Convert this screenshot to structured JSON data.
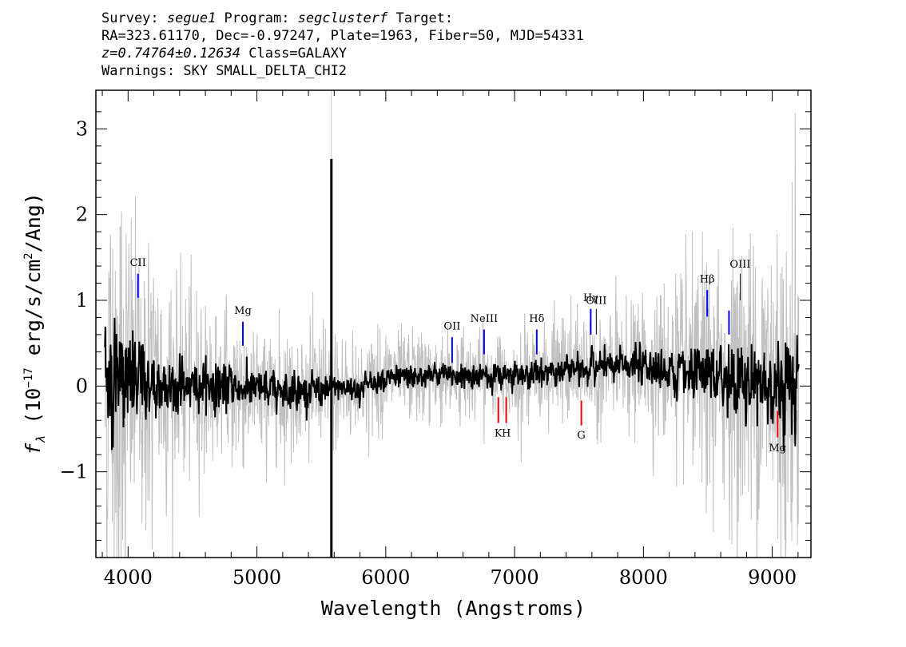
{
  "header": {
    "line1": {
      "l1": "Survey: ",
      "survey": "segue1",
      "l2": " Program: ",
      "program": "segclusterf",
      "l3": " Target:"
    },
    "line2": "RA=323.61170, Dec=-0.97247, Plate=1963, Fiber=50, MJD=54331",
    "line3": {
      "z": "z=0.74764±0.12634",
      "cls": " Class=GALAXY"
    },
    "line4": "Warnings: SKY SMALL_DELTA_CHI2"
  },
  "chart_data": {
    "type": "line",
    "xlabel": "Wavelength (Angstroms)",
    "ylabel": {
      "prefix": "f",
      "sub": "λ",
      "text1": " (10",
      "sup": "−17",
      "text2": " erg/s/cm",
      "sup2": "2",
      "text3": "/Ang)"
    },
    "xlim": [
      3750,
      9300
    ],
    "ylim": [
      -2.0,
      3.45
    ],
    "xticks": [
      4000,
      5000,
      6000,
      7000,
      8000,
      9000
    ],
    "xtick_labels": [
      "4000",
      "5000",
      "6000",
      "7000",
      "8000",
      "9000"
    ],
    "yticks": [
      -1,
      0,
      1,
      2,
      3
    ],
    "ytick_labels": [
      "−1",
      "0",
      "1",
      "2",
      "3"
    ],
    "series": [
      {
        "role": "error envelope",
        "color": "#c0c0c0"
      },
      {
        "role": "smoothed flux",
        "color": "#000000"
      }
    ],
    "spike": {
      "x": 5578,
      "y_top": 2.65,
      "y_bottom": -2.0
    },
    "flux_profile": [
      [
        3820,
        0.1
      ],
      [
        4000,
        0.05
      ],
      [
        4300,
        0.0
      ],
      [
        4600,
        0.02
      ],
      [
        5000,
        -0.05
      ],
      [
        5400,
        -0.05
      ],
      [
        5800,
        -0.02
      ],
      [
        6000,
        0.1
      ],
      [
        6500,
        0.12
      ],
      [
        7000,
        0.12
      ],
      [
        7500,
        0.2
      ],
      [
        8000,
        0.25
      ],
      [
        8500,
        0.1
      ],
      [
        8900,
        0.05
      ],
      [
        9200,
        0.0
      ]
    ],
    "noise_profile": [
      [
        3820,
        0.75
      ],
      [
        4100,
        0.5
      ],
      [
        4400,
        0.3
      ],
      [
        5000,
        0.22
      ],
      [
        5600,
        0.18
      ],
      [
        6000,
        0.14
      ],
      [
        7000,
        0.14
      ],
      [
        8000,
        0.2
      ],
      [
        8400,
        0.32
      ],
      [
        8800,
        0.45
      ],
      [
        9200,
        0.6
      ]
    ],
    "emission_lines": [
      {
        "name": "CII",
        "x": 4077,
        "y1": 1.03,
        "y2": 1.31,
        "color": "#0000ff",
        "label_y": 1.4
      },
      {
        "name": "Mg",
        "x": 4891,
        "y1": 0.47,
        "y2": 0.75,
        "color": "#0000ff",
        "label_y": 0.84
      },
      {
        "name": "OII",
        "x": 6515,
        "y1": 0.27,
        "y2": 0.57,
        "color": "#0000ff",
        "label_y": 0.66
      },
      {
        "name": "NeIII",
        "x": 6763,
        "y1": 0.37,
        "y2": 0.66,
        "color": "#0000ff",
        "label_y": 0.75
      },
      {
        "name": "Hδ",
        "x": 7172,
        "y1": 0.37,
        "y2": 0.66,
        "color": "#0000ff",
        "label_y": 0.75
      },
      {
        "name": "Hγ",
        "x": 7591,
        "y1": 0.6,
        "y2": 0.9,
        "color": "#0000ff",
        "label_y": 0.99
      },
      {
        "name": "OIII",
        "x": 7634,
        "y1": 0.6,
        "y2": 0.9,
        "color": "#000000",
        "label_y": 0.96
      },
      {
        "name": "Hβ",
        "x": 8495,
        "y1": 0.81,
        "y2": 1.12,
        "color": "#0000ff",
        "label_y": 1.21
      },
      {
        "name": "",
        "x": 8664,
        "y1": 0.6,
        "y2": 0.88,
        "color": "#0000ff"
      },
      {
        "name": "OIII",
        "x": 8751,
        "y1": 1.0,
        "y2": 1.31,
        "color": "#000000",
        "label_y": 1.38
      }
    ],
    "absorption_lines": [
      {
        "name": "K",
        "x": 6874,
        "y1": -0.13,
        "y2": -0.43,
        "color": "#ff0000",
        "label_y": -0.59
      },
      {
        "name": "H",
        "x": 6935,
        "y1": -0.13,
        "y2": -0.43,
        "color": "#ff0000",
        "label_y": -0.59
      },
      {
        "name": "G",
        "x": 7518,
        "y1": -0.17,
        "y2": -0.46,
        "color": "#ff0000",
        "label_y": -0.61
      },
      {
        "name": "Mg",
        "x": 9041,
        "y1": -0.29,
        "y2": -0.6,
        "color": "#ff0000",
        "label_y": -0.76
      }
    ]
  }
}
